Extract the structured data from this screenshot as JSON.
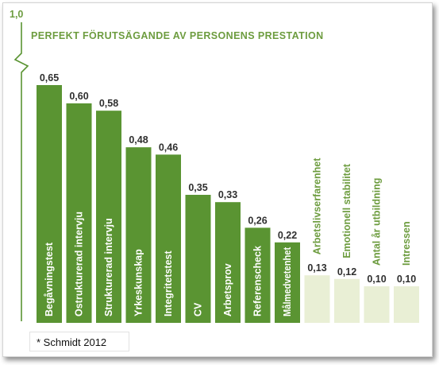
{
  "chart_data": {
    "type": "bar",
    "title": "PERFEKT FÖRUTSÄGANDE AV PERSONENS PRESTATION",
    "y_top_label": "1,0",
    "categories": [
      "Begåvningstest",
      "Ostrukturerad intervju",
      "Strukturerad intervju",
      "Yrkeskunskap",
      "Integritetstest",
      "CV",
      "Arbetsprov",
      "Referenscheck",
      "Målmedvetenhet",
      "Arbetslivserfarenhet",
      "Emotionell stabilitet",
      "Antal år utbildning",
      "Intressen"
    ],
    "values": [
      0.65,
      0.6,
      0.58,
      0.48,
      0.46,
      0.35,
      0.33,
      0.26,
      0.22,
      0.13,
      0.12,
      0.1,
      0.1
    ],
    "value_labels": [
      "0,65",
      "0,60",
      "0,58",
      "0,48",
      "0,46",
      "0,35",
      "0,33",
      "0,26",
      "0,22",
      "0,13",
      "0,12",
      "0,10",
      "0,10"
    ],
    "ylim": [
      0,
      1.0
    ],
    "colors": {
      "primary": "#5a9432",
      "light": "#e9efd5",
      "title": "#6d9c3f",
      "light_label": "#6d9c3f",
      "value_text": "#2f2f2f"
    }
  },
  "source_note": "* Schmidt 2012"
}
